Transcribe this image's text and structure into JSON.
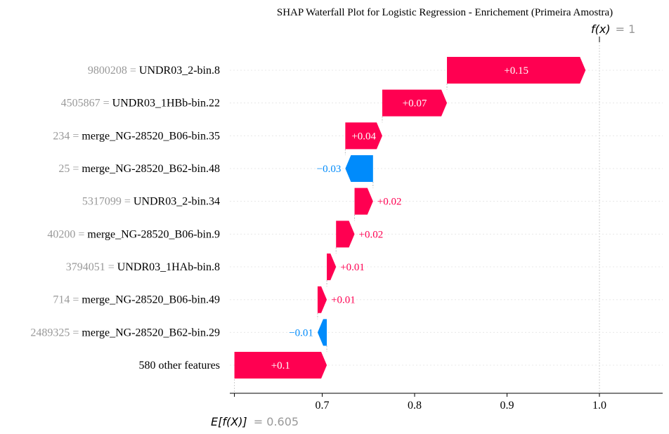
{
  "chart_data": {
    "type": "waterfall",
    "title": "SHAP Waterfall Plot for Logistic Regression - Enrichement (Primeira Amostra)",
    "base_value": 0.605,
    "output_value": 1,
    "expected_label": "E[f(X)]",
    "expected_value_text": "= 0.605",
    "output_label": "f(x)",
    "output_value_text": "= 1",
    "xlim": [
      0.6,
      1.065
    ],
    "xticks": [
      0.7,
      0.8,
      0.9,
      1.0
    ],
    "xtick_labels": [
      "0.7",
      "0.8",
      "0.9",
      "1.0"
    ],
    "colors": {
      "positive": "#ff0051",
      "negative": "#008bfb"
    },
    "features": [
      {
        "value": "9800208",
        "name": "UNDR03_2-bin.8",
        "shap": 0.15,
        "label": "+0.15"
      },
      {
        "value": "4505867",
        "name": "UNDR03_1HBb-bin.22",
        "shap": 0.07,
        "label": "+0.07"
      },
      {
        "value": "234",
        "name": "merge_NG-28520_B06-bin.35",
        "shap": 0.04,
        "label": "+0.04"
      },
      {
        "value": "25",
        "name": "merge_NG-28520_B62-bin.48",
        "shap": -0.03,
        "label": "−0.03"
      },
      {
        "value": "5317099",
        "name": "UNDR03_2-bin.34",
        "shap": 0.02,
        "label": "+0.02"
      },
      {
        "value": "40200",
        "name": "merge_NG-28520_B06-bin.9",
        "shap": 0.02,
        "label": "+0.02"
      },
      {
        "value": "3794051",
        "name": "UNDR03_1HAb-bin.8",
        "shap": 0.01,
        "label": "+0.01"
      },
      {
        "value": "714",
        "name": "merge_NG-28520_B06-bin.49",
        "shap": 0.01,
        "label": "+0.01"
      },
      {
        "value": "2489325",
        "name": "merge_NG-28520_B62-bin.29",
        "shap": -0.01,
        "label": "−0.01"
      },
      {
        "value": "",
        "name": "580 other features",
        "shap": 0.1,
        "label": "+0.1"
      }
    ]
  }
}
